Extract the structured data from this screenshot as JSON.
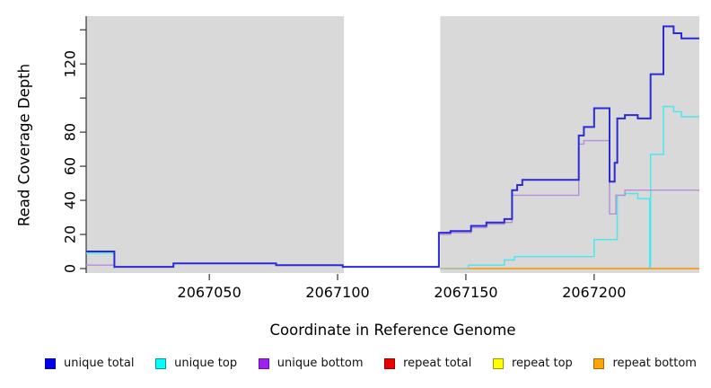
{
  "figure": {
    "xlabel": "Coordinate in Reference Genome",
    "ylabel": "Read Coverage Depth",
    "plot_bg": "#D9D9D9",
    "masked_region_color": "#FFFFFF",
    "axis_color": "#333333",
    "tick_label_color": "#000000"
  },
  "chart_data": {
    "type": "line",
    "step": true,
    "title": "",
    "xlabel": "Coordinate in Reference Genome",
    "ylabel": "Read Coverage Depth",
    "grid": false,
    "legend_position": "bottom",
    "xlim": [
      2067002,
      2067241
    ],
    "ylim": [
      0,
      148
    ],
    "x_ticks": [
      2067050,
      2067100,
      2067150,
      2067200
    ],
    "y_ticks": [
      {
        "value": 0,
        "label": "0"
      },
      {
        "value": 20,
        "label": "20"
      },
      {
        "value": 40,
        "label": "40"
      },
      {
        "value": 60,
        "label": "60"
      },
      {
        "value": 80,
        "label": "80"
      },
      {
        "value": 100,
        "label": ""
      },
      {
        "value": 120,
        "label": "120"
      },
      {
        "value": 140,
        "label": ""
      }
    ],
    "masked_region": {
      "from": 2067102.5,
      "to": 2067140
    },
    "series": [
      {
        "key": "unique_total",
        "name": "unique total",
        "color": "#0000EE",
        "border": "#00009B",
        "line_color": "#2B2BD5",
        "line_width": 2,
        "points": [
          [
            2067002,
            10
          ],
          [
            2067013,
            1
          ],
          [
            2067036,
            3
          ],
          [
            2067076,
            2
          ],
          [
            2067102,
            1
          ],
          [
            2067139.5,
            21
          ],
          [
            2067144,
            22
          ],
          [
            2067152,
            25
          ],
          [
            2067158,
            27
          ],
          [
            2067165,
            29
          ],
          [
            2067168,
            46
          ],
          [
            2067170,
            49
          ],
          [
            2067172,
            52
          ],
          [
            2067194,
            78
          ],
          [
            2067196,
            83
          ],
          [
            2067200,
            94
          ],
          [
            2067206,
            51
          ],
          [
            2067208,
            62
          ],
          [
            2067209,
            88
          ],
          [
            2067212,
            90
          ],
          [
            2067217,
            88
          ],
          [
            2067222,
            114
          ],
          [
            2067227,
            142
          ],
          [
            2067231,
            138
          ],
          [
            2067234,
            135
          ],
          [
            2067241,
            135
          ]
        ]
      },
      {
        "key": "unique_top",
        "name": "unique top",
        "color": "#00FFFF",
        "border": "#009999",
        "line_color": "#45E8F0",
        "line_width": 1.4,
        "points": [
          [
            2067002,
            9
          ],
          [
            2067013,
            0
          ],
          [
            2067102.5,
            null
          ],
          [
            2067140,
            0
          ],
          [
            2067151,
            2
          ],
          [
            2067165,
            5
          ],
          [
            2067169,
            7
          ],
          [
            2067200,
            17
          ],
          [
            2067209,
            43
          ],
          [
            2067212,
            44
          ],
          [
            2067217,
            41
          ],
          [
            2067221.6,
            0
          ],
          [
            2067222,
            67
          ],
          [
            2067227,
            95
          ],
          [
            2067231,
            92
          ],
          [
            2067234,
            89
          ],
          [
            2067241,
            89
          ]
        ]
      },
      {
        "key": "unique_bottom",
        "name": "unique bottom",
        "color": "#A020F0",
        "border": "#6A0DAD",
        "line_color": "#B78CD9",
        "line_width": 1.4,
        "points": [
          [
            2067002,
            2
          ],
          [
            2067013,
            1
          ],
          [
            2067036,
            3
          ],
          [
            2067076,
            2
          ],
          [
            2067102,
            1
          ],
          [
            2067139.5,
            20
          ],
          [
            2067144,
            21
          ],
          [
            2067152,
            24
          ],
          [
            2067158,
            26
          ],
          [
            2067165,
            27
          ],
          [
            2067168,
            43
          ],
          [
            2067194,
            73
          ],
          [
            2067196,
            75
          ],
          [
            2067206,
            32
          ],
          [
            2067208.5,
            43
          ],
          [
            2067212,
            46
          ],
          [
            2067241,
            46
          ]
        ]
      },
      {
        "key": "repeat_total",
        "name": "repeat total",
        "color": "#EE0000",
        "border": "#990000",
        "line_color": "#DD2222",
        "line_width": 1.4,
        "points": [
          [
            2067002,
            0
          ],
          [
            2067102.5,
            null
          ],
          [
            2067140,
            0
          ],
          [
            2067241,
            0
          ]
        ]
      },
      {
        "key": "repeat_top",
        "name": "repeat top",
        "color": "#FFFF00",
        "border": "#999900",
        "line_color": "#ABD69E",
        "line_width": 1.4,
        "points": [
          [
            2067002,
            0
          ],
          [
            2067102.5,
            null
          ],
          [
            2067140,
            0
          ],
          [
            2067241,
            0
          ]
        ]
      },
      {
        "key": "repeat_bottom",
        "name": "repeat bottom",
        "color": "#FFA500",
        "border": "#AA6600",
        "line_color": "#FFA318",
        "line_width": 1.6,
        "points": [
          [
            2067002,
            0
          ],
          [
            2067013,
            null
          ],
          [
            2067151,
            0
          ],
          [
            2067241,
            0
          ]
        ]
      }
    ],
    "draw_order": [
      "unique_top",
      "repeat_total",
      "repeat_top",
      "repeat_bottom",
      "unique_bottom",
      "unique_total"
    ]
  }
}
